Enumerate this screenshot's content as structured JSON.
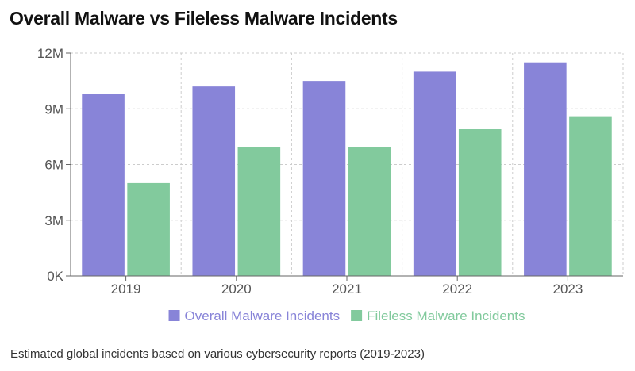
{
  "title": "Overall Malware vs Fileless Malware Incidents",
  "caption": "Estimated global incidents based on various cybersecurity reports (2019-2023)",
  "chart_data": {
    "type": "bar",
    "categories": [
      "2019",
      "2020",
      "2021",
      "2022",
      "2023"
    ],
    "series": [
      {
        "name": "Overall Malware Incidents",
        "values": [
          9800000,
          10200000,
          10500000,
          11000000,
          11500000
        ],
        "color": "#8884d8"
      },
      {
        "name": "Fileless Malware Incidents",
        "values": [
          5000000,
          6950000,
          6950000,
          7900000,
          8600000
        ],
        "color": "#82ca9d"
      }
    ],
    "ylim": [
      0,
      12000000
    ],
    "yticks": [
      0,
      3000000,
      6000000,
      9000000,
      12000000
    ],
    "ytick_labels": [
      "0K",
      "3M",
      "6M",
      "9M",
      "12M"
    ],
    "grid": true,
    "legend_position": "bottom"
  }
}
